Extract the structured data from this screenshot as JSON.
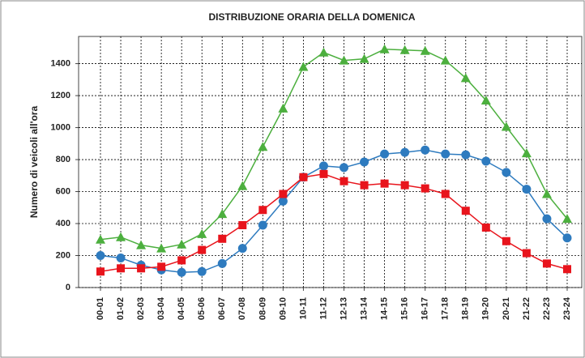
{
  "chart_data": {
    "type": "line",
    "title": "DISTRIBUZIONE ORARIA DELLA DOMENICA",
    "y_label": "Numero di veicoli all'ora",
    "categories": [
      "00-01",
      "01-02",
      "02-03",
      "03-04",
      "04-05",
      "05-06",
      "06-07",
      "07-08",
      "08-09",
      "09-10",
      "10-11",
      "11-12",
      "12-13",
      "13-14",
      "14-15",
      "15-16",
      "16-17",
      "17-18",
      "18-19",
      "19-20",
      "20-21",
      "21-22",
      "22-23",
      "23-24"
    ],
    "series": [
      {
        "color": "#4caf3e",
        "marker": "triangle",
        "values": [
          300,
          315,
          265,
          245,
          270,
          335,
          460,
          635,
          880,
          1120,
          1380,
          1470,
          1420,
          1430,
          1490,
          1485,
          1480,
          1420,
          1310,
          1170,
          1005,
          840,
          585,
          430
        ]
      },
      {
        "color": "#2e7bbf",
        "marker": "circle",
        "values": [
          200,
          185,
          140,
          110,
          95,
          100,
          150,
          245,
          390,
          540,
          690,
          760,
          750,
          785,
          835,
          845,
          860,
          835,
          830,
          790,
          720,
          615,
          430,
          310
        ]
      },
      {
        "color": "#e8141c",
        "marker": "square",
        "values": [
          100,
          120,
          120,
          130,
          170,
          235,
          305,
          390,
          485,
          585,
          690,
          710,
          665,
          640,
          650,
          640,
          620,
          585,
          480,
          375,
          290,
          215,
          150,
          115
        ]
      }
    ],
    "ylim": [
      0,
      1570
    ],
    "yticks": [
      0,
      200,
      400,
      600,
      800,
      1000,
      1200,
      1400
    ],
    "grid": true
  }
}
